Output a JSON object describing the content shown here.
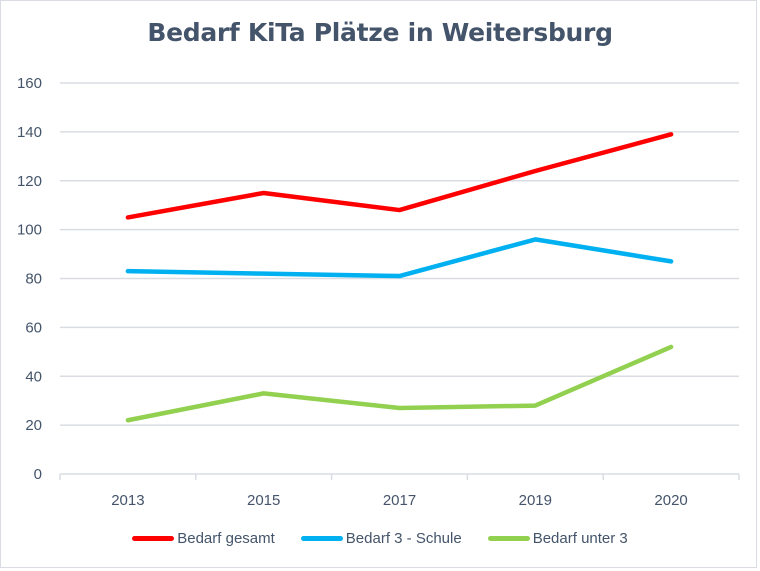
{
  "chart_data": {
    "type": "line",
    "title": "Bedarf KiTa Plätze in Weitersburg",
    "xlabel": "",
    "ylabel": "",
    "categories": [
      "2013",
      "2015",
      "2017",
      "2019",
      "2020"
    ],
    "ylim": [
      0,
      160
    ],
    "yticks": [
      "0",
      "20",
      "40",
      "60",
      "80",
      "100",
      "120",
      "140",
      "160"
    ],
    "grid": true,
    "legend_position": "bottom",
    "series": [
      {
        "name": "Bedarf gesamt",
        "color": "#ff0000",
        "values": [
          105,
          115,
          108,
          124,
          139
        ]
      },
      {
        "name": "Bedarf 3 - Schule",
        "color": "#00b0f0",
        "values": [
          83,
          82,
          81,
          96,
          87
        ]
      },
      {
        "name": "Bedarf unter 3",
        "color": "#92d050",
        "values": [
          22,
          33,
          27,
          28,
          52
        ]
      }
    ]
  }
}
